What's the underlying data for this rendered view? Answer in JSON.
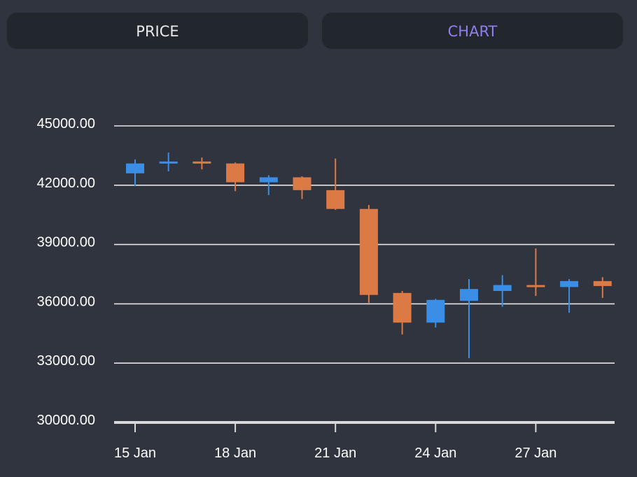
{
  "tabs": {
    "price_label": "PRICE",
    "chart_label": "CHART"
  },
  "colors": {
    "background": "#2f343e",
    "tab_bg": "#22262d",
    "active_tab": "#8f7ff0",
    "up": "#3a8ee6",
    "down": "#db7a45",
    "grid": "#e6e6e6"
  },
  "chart_data": {
    "type": "candlestick",
    "y_ticks": [
      "45000.00",
      "42000.00",
      "39000.00",
      "36000.00",
      "33000.00",
      "30000.00"
    ],
    "y_tick_values": [
      45000,
      42000,
      39000,
      36000,
      33000,
      30000
    ],
    "ylim": [
      30000,
      45000
    ],
    "x_ticks": [
      {
        "label": "15 Jan",
        "index": 0
      },
      {
        "label": "18 Jan",
        "index": 3
      },
      {
        "label": "21 Jan",
        "index": 6
      },
      {
        "label": "24 Jan",
        "index": 9
      },
      {
        "label": "27 Jan",
        "index": 12
      }
    ],
    "candles": [
      {
        "date": "15 Jan",
        "open": 42600,
        "high": 43300,
        "low": 41950,
        "close": 43100
      },
      {
        "date": "16 Jan",
        "open": 43100,
        "high": 43650,
        "low": 42700,
        "close": 43200
      },
      {
        "date": "17 Jan",
        "open": 43200,
        "high": 43400,
        "low": 42800,
        "close": 43100
      },
      {
        "date": "18 Jan",
        "open": 43100,
        "high": 43150,
        "low": 41700,
        "close": 42150
      },
      {
        "date": "19 Jan",
        "open": 42150,
        "high": 42500,
        "low": 41500,
        "close": 42400
      },
      {
        "date": "20 Jan",
        "open": 42400,
        "high": 42450,
        "low": 41300,
        "close": 41750
      },
      {
        "date": "21 Jan",
        "open": 41750,
        "high": 43350,
        "low": 40750,
        "close": 40800
      },
      {
        "date": "22 Jan",
        "open": 40800,
        "high": 41000,
        "low": 36050,
        "close": 36450
      },
      {
        "date": "23 Jan",
        "open": 36550,
        "high": 36650,
        "low": 34450,
        "close": 35050
      },
      {
        "date": "24 Jan",
        "open": 35050,
        "high": 36250,
        "low": 34800,
        "close": 36200
      },
      {
        "date": "25 Jan",
        "open": 36150,
        "high": 37250,
        "low": 33250,
        "close": 36750
      },
      {
        "date": "26 Jan",
        "open": 36650,
        "high": 37450,
        "low": 35850,
        "close": 36950
      },
      {
        "date": "27 Jan",
        "open": 36950,
        "high": 38800,
        "low": 36400,
        "close": 36850
      },
      {
        "date": "28 Jan",
        "open": 36850,
        "high": 37250,
        "low": 35550,
        "close": 37150
      },
      {
        "date": "29 Jan",
        "open": 37150,
        "high": 37350,
        "low": 36300,
        "close": 36900
      }
    ]
  }
}
